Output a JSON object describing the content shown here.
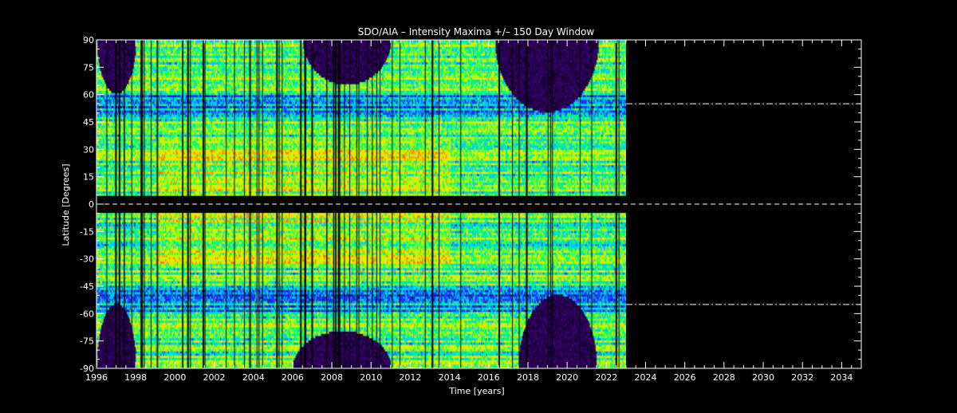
{
  "chart_data": {
    "type": "heatmap",
    "title": "SDO/AIA – Intensity Maxima +/– 150 Day Window",
    "xlabel": "Time [years]",
    "ylabel": "Latitude [Degrees]",
    "xlim": [
      1996,
      2035
    ],
    "ylim": [
      -90,
      90
    ],
    "x_ticks": [
      1996,
      1998,
      2000,
      2002,
      2004,
      2006,
      2008,
      2010,
      2012,
      2014,
      2016,
      2018,
      2020,
      2022,
      2024,
      2026,
      2028,
      2030,
      2032,
      2034
    ],
    "y_ticks": [
      -90,
      -75,
      -60,
      -45,
      -30,
      -15,
      0,
      15,
      30,
      45,
      60,
      75,
      90
    ],
    "data_extent_years": [
      1996.0,
      2023.0
    ],
    "equator_gap_latitude": [
      -5,
      4
    ],
    "reference_lines": [
      {
        "latitude": 0,
        "style": "dashed",
        "color": "#ffffff"
      },
      {
        "latitude": 55,
        "style": "dash-dot",
        "color": "#ffffff",
        "from_year": 2023
      },
      {
        "latitude": -55,
        "style": "dash-dot",
        "color": "#ffffff",
        "from_year": 2023
      }
    ],
    "polar_dark_regions": [
      {
        "year_range": [
          1996,
          1998
        ],
        "latitude_range": [
          60,
          90
        ]
      },
      {
        "year_range": [
          2006.5,
          2011
        ],
        "latitude_range": [
          65,
          90
        ]
      },
      {
        "year_range": [
          2016.3,
          2021.6
        ],
        "latitude_range": [
          50,
          90
        ]
      },
      {
        "year_range": [
          1996,
          1998
        ],
        "latitude_range": [
          -90,
          -55
        ]
      },
      {
        "year_range": [
          2006,
          2011
        ],
        "latitude_range": [
          -90,
          -70
        ]
      },
      {
        "year_range": [
          2017.5,
          2021.5
        ],
        "latitude_range": [
          -90,
          -50
        ]
      }
    ],
    "colormap": [
      "#1a0036",
      "#3a006e",
      "#1c1ca8",
      "#2040ff",
      "#00c8ff",
      "#00ff7f",
      "#b8ff00",
      "#ffe000",
      "#ff7a00",
      "#e00000"
    ],
    "background_color": "#000000",
    "axis_color": "#ffffff"
  }
}
